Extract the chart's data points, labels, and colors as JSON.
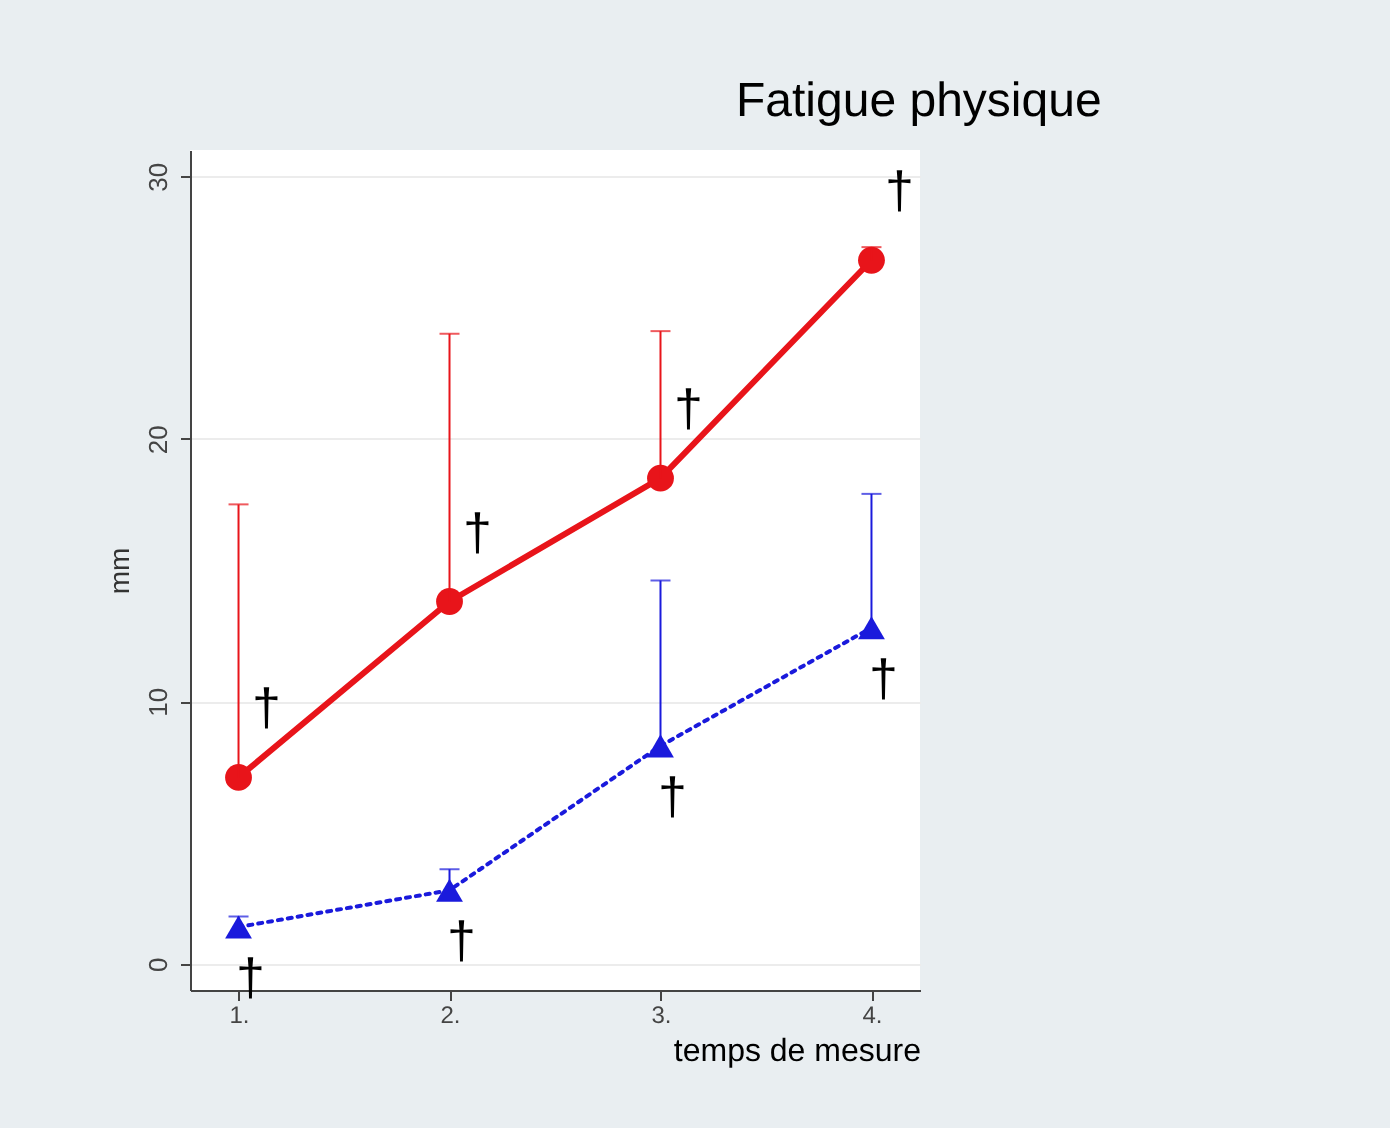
{
  "chart_data": {
    "type": "line",
    "title": "Fatigue physique",
    "xlabel": "temps de mesure",
    "ylabel": "mm",
    "categories": [
      "1.",
      "2.",
      "3.",
      "4."
    ],
    "series": [
      {
        "color": "#e8141a",
        "values": [
          7.1,
          13.8,
          18.5,
          26.8
        ],
        "errors": [
          [
            7.1,
            17.5
          ],
          [
            13.8,
            24.0
          ],
          [
            18.5,
            24.1
          ],
          [
            26.8,
            27.3
          ]
        ],
        "marker": "circle",
        "line_style": "solid"
      },
      {
        "color": "#1a1adc",
        "values": [
          1.4,
          2.8,
          8.3,
          12.8
        ],
        "errors": [
          [
            1.4,
            1.8
          ],
          [
            2.8,
            3.6
          ],
          [
            8.3,
            14.6
          ],
          [
            12.8,
            17.9
          ]
        ],
        "marker": "triangle",
        "line_style": "dotted"
      }
    ],
    "ylim": [
      -1,
      31
    ],
    "yticks": [
      0,
      10,
      20,
      30
    ],
    "grid": "y",
    "annotations": [
      "†",
      "†",
      "†",
      "†",
      "†",
      "†",
      "†",
      "†"
    ]
  }
}
